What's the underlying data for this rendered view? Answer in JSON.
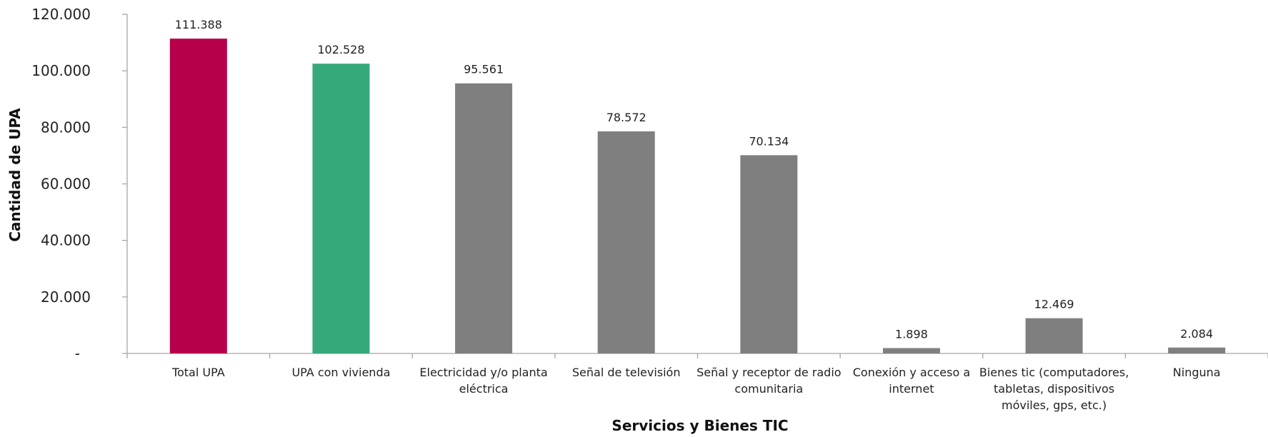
{
  "chart_data": {
    "type": "bar",
    "title": "",
    "xlabel": "Servicios y Bienes TIC",
    "ylabel": "Cantidad de UPA",
    "categories": [
      [
        "Total UPA"
      ],
      [
        "UPA con vivienda"
      ],
      [
        "Electricidad y/o planta",
        "eléctrica"
      ],
      [
        "Señal de televisión"
      ],
      [
        "Señal y receptor de radio",
        "comunitaria"
      ],
      [
        "Conexión y acceso a",
        "internet"
      ],
      [
        "Bienes tic (computadores,",
        "tabletas, dispositivos",
        "móviles, gps, etc.)"
      ],
      [
        "Ninguna"
      ]
    ],
    "values": [
      111388,
      102528,
      95561,
      78572,
      70134,
      1898,
      12469,
      2084
    ],
    "value_labels": [
      "111.388",
      "102.528",
      "95.561",
      "78.572",
      "70.134",
      "1.898",
      "12.469",
      "2.084"
    ],
    "colors": [
      "#b8004a",
      "#36a97a",
      "#7f7f7f",
      "#7f7f7f",
      "#7f7f7f",
      "#7f7f7f",
      "#7f7f7f",
      "#7f7f7f"
    ],
    "ylim": [
      0,
      120000
    ],
    "yticks": [
      {
        "value": 0,
        "label": "-"
      },
      {
        "value": 20000,
        "label": "20.000"
      },
      {
        "value": 40000,
        "label": "40.000"
      },
      {
        "value": 60000,
        "label": "60.000"
      },
      {
        "value": 80000,
        "label": "80.000"
      },
      {
        "value": 100000,
        "label": "100.000"
      },
      {
        "value": 120000,
        "label": "120.000"
      }
    ],
    "grid": false,
    "legend": "none"
  }
}
